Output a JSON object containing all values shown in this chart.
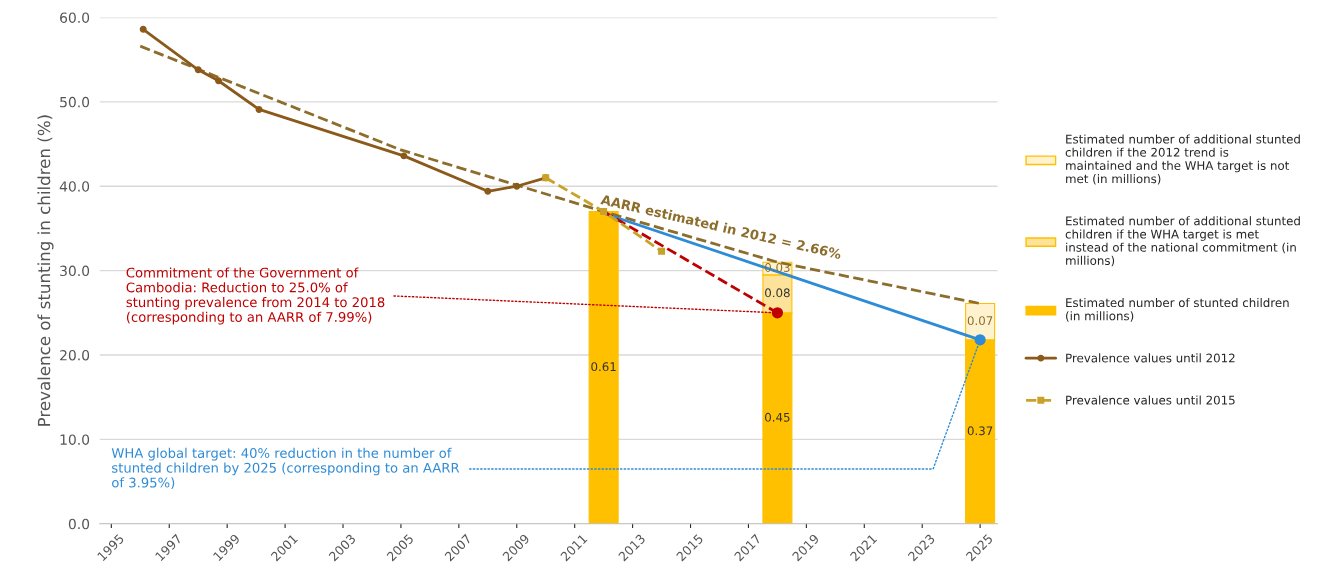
{
  "chart_data": {
    "type": "line",
    "ylabel": "Prevalence of stunting in children (%)",
    "xlim": [
      1994.6,
      2025.6
    ],
    "xticks": [
      1995,
      1997,
      1999,
      2001,
      2003,
      2005,
      2007,
      2009,
      2011,
      2013,
      2015,
      2017,
      2019,
      2021,
      2023,
      2025
    ],
    "ylim": [
      0,
      60
    ],
    "yticks": [
      {
        "value": 0,
        "label": "0.0"
      },
      {
        "value": 10,
        "label": "10.0"
      },
      {
        "value": 20,
        "label": "20.0"
      },
      {
        "value": 30,
        "label": "30.0"
      },
      {
        "value": 40,
        "label": "40.0"
      },
      {
        "value": 50,
        "label": "50.0"
      },
      {
        "value": 60,
        "label": "60.0"
      }
    ],
    "grid": "y",
    "legend": "right",
    "stacked": true,
    "series": [
      {
        "type": "bar",
        "name": "Estimated number of stunted children (in millions)",
        "color": "#ffc000",
        "x": [
          2012,
          2018,
          2025
        ],
        "values": [
          37.0,
          25.0,
          21.8
        ]
      },
      {
        "type": "bar",
        "name": "Estimated number of additional stunted children if the WHA target is met instead of the national commitment (in millions)",
        "color": "#fde39a",
        "x": [
          2012,
          2018,
          2025
        ],
        "values": [
          0,
          4.5,
          0
        ]
      },
      {
        "type": "bar",
        "name": "Estimated number of additional stunted children if the 2012 trend is maintained and the WHA target is not met (in millions)",
        "color": "#fff3cf",
        "x": [
          2012,
          2018,
          2025
        ],
        "values": [
          0,
          1.5,
          4.3
        ]
      },
      {
        "color": "#8c6d2c",
        "line_style": "dashed",
        "marker": "none",
        "x": [
          1996,
          2005,
          2012,
          2018,
          2025
        ],
        "values": [
          56.6,
          44.3,
          37.0,
          31.0,
          26.1
        ]
      },
      {
        "color": "#2e8bd6",
        "line_style": "solid",
        "marker": "none",
        "x": [
          2012,
          2025
        ],
        "values": [
          36.8,
          21.8
        ]
      },
      {
        "color": "#c00000",
        "line_style": "dashed",
        "marker": "none",
        "x": [
          2012,
          2018
        ],
        "values": [
          37.0,
          25.0
        ]
      },
      {
        "name": "Prevalence values until 2012",
        "color": "#8b5a1a",
        "line_style": "solid",
        "marker": "circle",
        "x": [
          1996.1,
          1998.0,
          1998.7,
          2000.1,
          2005.1,
          2008.0,
          2009.0,
          2010.0
        ],
        "values": [
          58.6,
          53.8,
          52.5,
          49.1,
          43.6,
          39.4,
          40.0,
          41.0
        ]
      },
      {
        "name": "Prevalence values until 2015",
        "color": "#c9a227",
        "line_style": "dashed",
        "marker": "square",
        "x": [
          2010.0,
          2012.0,
          2014.0
        ],
        "values": [
          41.0,
          37.0,
          32.3
        ]
      },
      {
        "type": "scatter",
        "color": "#c00000",
        "marker": "circle",
        "x": [
          2018
        ],
        "values": [
          25.0
        ]
      },
      {
        "type": "scatter",
        "color": "#2e8bd6",
        "marker": "circle",
        "x": [
          2025
        ],
        "values": [
          21.8
        ]
      }
    ],
    "annotations": [
      {
        "text": "AARR estimated in 2012 = 2.66%",
        "x": 2016,
        "y": 33.0
      },
      {
        "text": "Commitment of the Government of Cambodia: Reduction to 25.0% of stunting prevalence from 2014 to 2018 (corresponding to an AARR of 7.99%)",
        "x": 2018,
        "y": 25.0
      },
      {
        "text": "WHA global target: 40% reduction in the number of stunted children by 2025 (corresponding to an AARR of 3.95%)",
        "x": 2025,
        "y": 21.8
      },
      "0.61",
      "0.45",
      "0.37",
      {
        "text": "0.08",
        "x": 2018,
        "y": 29.5
      },
      {
        "text": "0.03",
        "x": 2018,
        "y": 31.0
      },
      {
        "text": "0.07",
        "x": 2025,
        "y": 26.1
      }
    ]
  }
}
